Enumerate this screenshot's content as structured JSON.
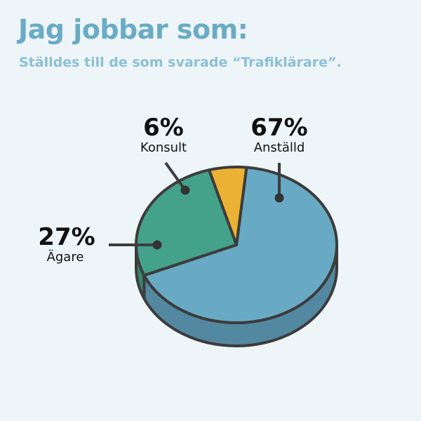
{
  "header": {
    "title": "Jag jobbar som:",
    "subtitle": "Ställdes till de som svarade “Trafiklärare”."
  },
  "chart_data": {
    "type": "pie",
    "title": "Jag jobbar som:",
    "subtitle": "Ställdes till de som svarade “Trafiklärare”.",
    "unit": "%",
    "slices": [
      {
        "label": "Anställd",
        "value": 67,
        "display": "67%",
        "color": "#68aac3",
        "side_color": "#5289a1"
      },
      {
        "label": "Ägare",
        "value": 27,
        "display": "27%",
        "color": "#45a28a",
        "side_color": "#368670"
      },
      {
        "label": "Konsult",
        "value": 6,
        "display": "6%",
        "color": "#ebb134",
        "side_color": "#c9932a"
      }
    ]
  }
}
